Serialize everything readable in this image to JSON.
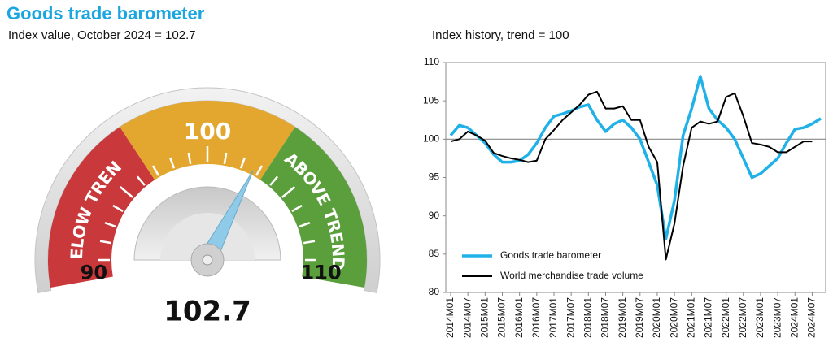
{
  "header": {
    "title": "Goods trade barometer"
  },
  "chart_data": [
    {
      "type": "gauge",
      "subtitle": "Index value, October 2024 = 102.7",
      "value": 102.7,
      "lim": [
        90,
        110
      ],
      "ticks": [
        90,
        100,
        110
      ],
      "band_labels": [
        "BELOW TREND",
        "ABOVE TREND"
      ],
      "band_colors": [
        "#c9383a",
        "#e3a72f",
        "#5a9f3b"
      ],
      "needle_color": "#8fcbe8"
    },
    {
      "type": "line",
      "title": "Index history, trend = 100",
      "categories": [
        "2014M01",
        null,
        "2014M07",
        null,
        "2015M01",
        null,
        "2015M07",
        null,
        "2016M01",
        null,
        "2016M07",
        null,
        "2017M01",
        null,
        "2017M07",
        null,
        "2018M01",
        null,
        "2018M07",
        null,
        "2019M01",
        null,
        "2019M07",
        null,
        "2020M01",
        null,
        "2020M07",
        null,
        "2021M01",
        null,
        "2021M07",
        null,
        "2022M01",
        null,
        "2022M07",
        null,
        "2023M01",
        null,
        "2023M07",
        null,
        "2024M01",
        null,
        "2024M07",
        null
      ],
      "series": [
        {
          "name": "Goods trade barometer",
          "color": "#1fb1e8",
          "values": [
            100.5,
            101.8,
            101.5,
            100.5,
            99.5,
            98,
            97,
            97,
            97.2,
            98,
            99.5,
            101.5,
            103,
            103.3,
            103.7,
            104.2,
            104.5,
            102.5,
            101,
            102,
            102.5,
            101.5,
            100,
            97,
            94,
            87,
            92,
            100.5,
            104,
            108.2,
            104,
            102.5,
            101.5,
            100,
            97.5,
            95,
            95.5,
            96.5,
            97.5,
            99.5,
            101.3,
            101.5,
            102,
            102.7
          ]
        },
        {
          "name": "World merchandise trade volume",
          "color": "#000000",
          "values": [
            99.7,
            100,
            101,
            100.5,
            99.8,
            98.2,
            97.8,
            97.5,
            97.3,
            97,
            97.2,
            100,
            101.2,
            102.5,
            103.5,
            104.5,
            105.8,
            106.2,
            104,
            104,
            104.3,
            102.5,
            102.5,
            99,
            97,
            84.3,
            89,
            96.5,
            101.5,
            102.3,
            102,
            102.3,
            105.5,
            106,
            103,
            99.5,
            99.3,
            99,
            98.3,
            98.3,
            99,
            99.7,
            99.7,
            null
          ]
        }
      ],
      "ylim": [
        80,
        110
      ],
      "yticks": [
        80,
        85,
        90,
        95,
        100,
        105,
        110
      ],
      "reference_line": 100,
      "legend": "bottom-left"
    }
  ]
}
